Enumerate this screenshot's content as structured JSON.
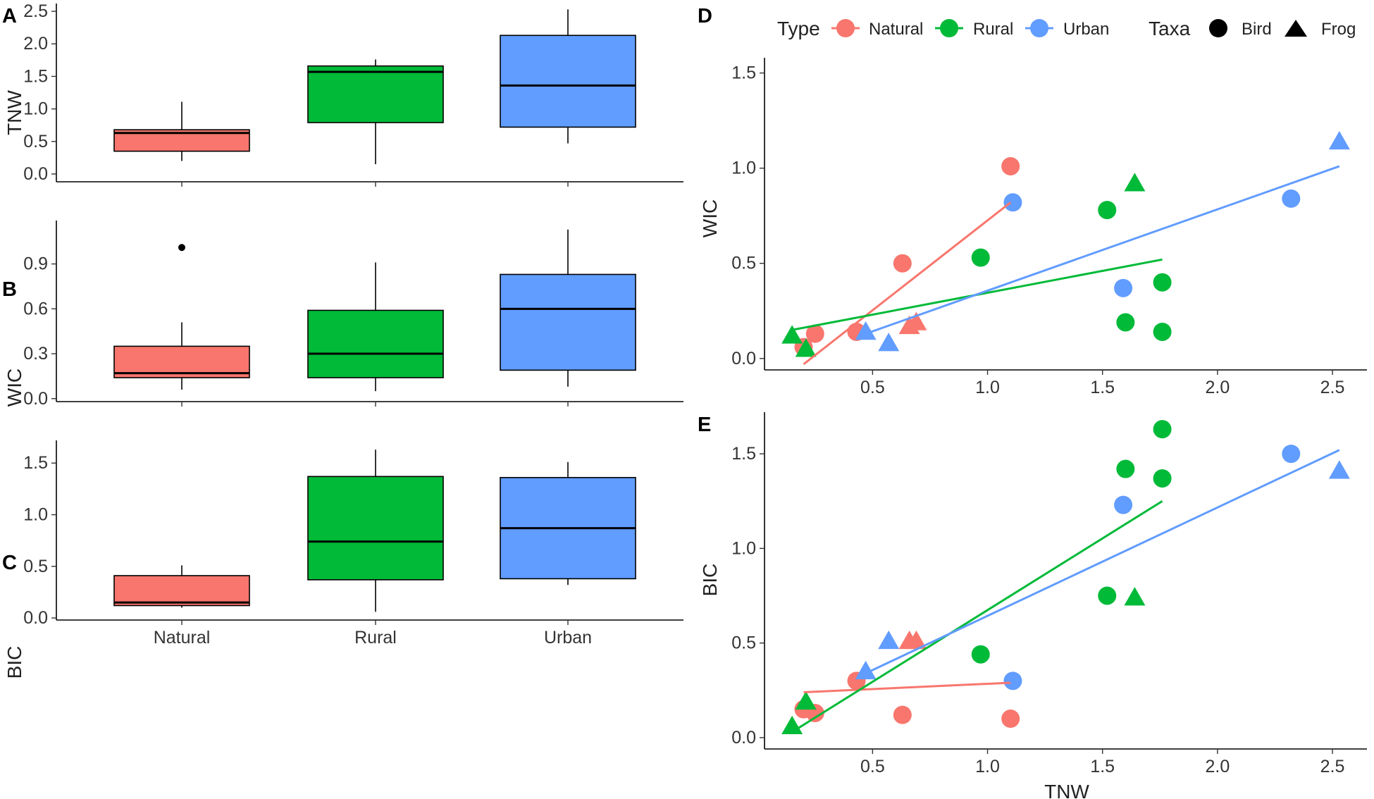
{
  "figure": {
    "panels": [
      "A",
      "B",
      "C",
      "D",
      "E"
    ]
  },
  "legend": {
    "type_title": "Type",
    "type_entries": [
      {
        "label": "Natural",
        "color": "#F8766D"
      },
      {
        "label": "Rural",
        "color": "#00BA38"
      },
      {
        "label": "Urban",
        "color": "#619CFF"
      }
    ],
    "taxa_title": "Taxa",
    "taxa_entries": [
      {
        "label": "Bird",
        "shape": "circle"
      },
      {
        "label": "Frog",
        "shape": "triangle"
      }
    ]
  },
  "chart_data": [
    {
      "panel": "A",
      "type": "box",
      "ylabel": "TNW",
      "categories": [
        "Natural",
        "Rural",
        "Urban"
      ],
      "colors": [
        "#F8766D",
        "#00BA38",
        "#619CFF"
      ],
      "ylim": [
        -0.12,
        2.62
      ],
      "yticks": [
        0.0,
        0.5,
        1.0,
        1.5,
        2.0,
        2.5
      ],
      "ytick_labels": [
        "0.0",
        "0.5",
        "1.0",
        "1.5",
        "2.0",
        "2.5"
      ],
      "boxes": [
        {
          "lower_whisker": 0.2,
          "q1": 0.35,
          "median": 0.63,
          "q3": 0.68,
          "upper_whisker": 1.11,
          "outliers": []
        },
        {
          "lower_whisker": 0.15,
          "q1": 0.79,
          "median": 1.57,
          "q3": 1.66,
          "upper_whisker": 1.76,
          "outliers": []
        },
        {
          "lower_whisker": 0.47,
          "q1": 0.72,
          "median": 1.36,
          "q3": 2.13,
          "upper_whisker": 2.53,
          "outliers": []
        }
      ]
    },
    {
      "panel": "B",
      "type": "box",
      "ylabel": "WIC",
      "categories": [
        "Natural",
        "Rural",
        "Urban"
      ],
      "colors": [
        "#F8766D",
        "#00BA38",
        "#619CFF"
      ],
      "ylim": [
        -0.02,
        1.19
      ],
      "yticks": [
        0.0,
        0.3,
        0.6,
        0.9
      ],
      "ytick_labels": [
        "0.0",
        "0.3",
        "0.6",
        "0.9"
      ],
      "boxes": [
        {
          "lower_whisker": 0.06,
          "q1": 0.14,
          "median": 0.17,
          "q3": 0.35,
          "upper_whisker": 0.51,
          "outliers": [
            1.01
          ]
        },
        {
          "lower_whisker": 0.05,
          "q1": 0.14,
          "median": 0.3,
          "q3": 0.59,
          "upper_whisker": 0.91,
          "outliers": []
        },
        {
          "lower_whisker": 0.08,
          "q1": 0.19,
          "median": 0.6,
          "q3": 0.83,
          "upper_whisker": 1.13,
          "outliers": []
        }
      ]
    },
    {
      "panel": "C",
      "type": "box",
      "ylabel": "BIC",
      "xlabels_shown": true,
      "categories": [
        "Natural",
        "Rural",
        "Urban"
      ],
      "colors": [
        "#F8766D",
        "#00BA38",
        "#619CFF"
      ],
      "ylim": [
        -0.02,
        1.72
      ],
      "yticks": [
        0.0,
        0.5,
        1.0,
        1.5
      ],
      "ytick_labels": [
        "0.0",
        "0.5",
        "1.0",
        "1.5"
      ],
      "boxes": [
        {
          "lower_whisker": 0.1,
          "q1": 0.12,
          "median": 0.15,
          "q3": 0.41,
          "upper_whisker": 0.51,
          "outliers": []
        },
        {
          "lower_whisker": 0.06,
          "q1": 0.37,
          "median": 0.74,
          "q3": 1.37,
          "upper_whisker": 1.63,
          "outliers": []
        },
        {
          "lower_whisker": 0.32,
          "q1": 0.38,
          "median": 0.87,
          "q3": 1.36,
          "upper_whisker": 1.51,
          "outliers": []
        }
      ]
    },
    {
      "panel": "D",
      "type": "scatter",
      "xlabel": "",
      "ylabel": "WIC",
      "xlim": [
        0.03,
        2.65
      ],
      "ylim": [
        -0.06,
        1.58
      ],
      "xticks": [
        0.5,
        1.0,
        1.5,
        2.0,
        2.5
      ],
      "xtick_labels": [
        "0.5",
        "1.0",
        "1.5",
        "2.0",
        "2.5"
      ],
      "yticks": [
        0.0,
        0.5,
        1.0,
        1.5
      ],
      "ytick_labels": [
        "0.0",
        "0.5",
        "1.0",
        "1.5"
      ],
      "points": [
        {
          "x": 0.2,
          "y": 0.06,
          "type": "Natural",
          "taxa": "Bird"
        },
        {
          "x": 0.25,
          "y": 0.13,
          "type": "Natural",
          "taxa": "Bird"
        },
        {
          "x": 0.43,
          "y": 0.14,
          "type": "Natural",
          "taxa": "Bird"
        },
        {
          "x": 0.63,
          "y": 0.5,
          "type": "Natural",
          "taxa": "Bird"
        },
        {
          "x": 1.1,
          "y": 1.01,
          "type": "Natural",
          "taxa": "Bird"
        },
        {
          "x": 0.66,
          "y": 0.17,
          "type": "Natural",
          "taxa": "Frog"
        },
        {
          "x": 0.69,
          "y": 0.19,
          "type": "Natural",
          "taxa": "Frog"
        },
        {
          "x": 0.97,
          "y": 0.53,
          "type": "Rural",
          "taxa": "Bird"
        },
        {
          "x": 1.52,
          "y": 0.78,
          "type": "Rural",
          "taxa": "Bird"
        },
        {
          "x": 1.6,
          "y": 0.19,
          "type": "Rural",
          "taxa": "Bird"
        },
        {
          "x": 1.76,
          "y": 0.4,
          "type": "Rural",
          "taxa": "Bird"
        },
        {
          "x": 1.76,
          "y": 0.14,
          "type": "Rural",
          "taxa": "Bird"
        },
        {
          "x": 0.15,
          "y": 0.12,
          "type": "Rural",
          "taxa": "Frog"
        },
        {
          "x": 0.21,
          "y": 0.05,
          "type": "Rural",
          "taxa": "Frog"
        },
        {
          "x": 1.64,
          "y": 0.92,
          "type": "Rural",
          "taxa": "Frog"
        },
        {
          "x": 1.11,
          "y": 0.82,
          "type": "Urban",
          "taxa": "Bird"
        },
        {
          "x": 1.59,
          "y": 0.37,
          "type": "Urban",
          "taxa": "Bird"
        },
        {
          "x": 2.32,
          "y": 0.84,
          "type": "Urban",
          "taxa": "Bird"
        },
        {
          "x": 0.47,
          "y": 0.14,
          "type": "Urban",
          "taxa": "Frog"
        },
        {
          "x": 0.57,
          "y": 0.08,
          "type": "Urban",
          "taxa": "Frog"
        },
        {
          "x": 2.53,
          "y": 1.14,
          "type": "Urban",
          "taxa": "Frog"
        }
      ],
      "fit_lines": [
        {
          "type": "Natural",
          "x": [
            0.2,
            1.1
          ],
          "y": [
            -0.03,
            0.82
          ]
        },
        {
          "type": "Rural",
          "x": [
            0.15,
            1.76
          ],
          "y": [
            0.15,
            0.52
          ]
        },
        {
          "type": "Urban",
          "x": [
            0.47,
            2.53
          ],
          "y": [
            0.13,
            1.01
          ]
        }
      ]
    },
    {
      "panel": "E",
      "type": "scatter",
      "xlabel": "TNW",
      "ylabel": "BIC",
      "xlim": [
        0.03,
        2.65
      ],
      "ylim": [
        -0.06,
        1.72
      ],
      "xticks": [
        0.5,
        1.0,
        1.5,
        2.0,
        2.5
      ],
      "xtick_labels": [
        "0.5",
        "1.0",
        "1.5",
        "2.0",
        "2.5"
      ],
      "yticks": [
        0.0,
        0.5,
        1.0,
        1.5
      ],
      "ytick_labels": [
        "0.0",
        "0.5",
        "1.0",
        "1.5"
      ],
      "points": [
        {
          "x": 0.2,
          "y": 0.15,
          "type": "Natural",
          "taxa": "Bird"
        },
        {
          "x": 0.25,
          "y": 0.13,
          "type": "Natural",
          "taxa": "Bird"
        },
        {
          "x": 0.43,
          "y": 0.3,
          "type": "Natural",
          "taxa": "Bird"
        },
        {
          "x": 0.63,
          "y": 0.12,
          "type": "Natural",
          "taxa": "Bird"
        },
        {
          "x": 1.1,
          "y": 0.1,
          "type": "Natural",
          "taxa": "Bird"
        },
        {
          "x": 0.66,
          "y": 0.51,
          "type": "Natural",
          "taxa": "Frog"
        },
        {
          "x": 0.69,
          "y": 0.51,
          "type": "Natural",
          "taxa": "Frog"
        },
        {
          "x": 0.97,
          "y": 0.44,
          "type": "Rural",
          "taxa": "Bird"
        },
        {
          "x": 1.52,
          "y": 0.75,
          "type": "Rural",
          "taxa": "Bird"
        },
        {
          "x": 1.6,
          "y": 1.42,
          "type": "Rural",
          "taxa": "Bird"
        },
        {
          "x": 1.76,
          "y": 1.63,
          "type": "Rural",
          "taxa": "Bird"
        },
        {
          "x": 1.76,
          "y": 1.37,
          "type": "Rural",
          "taxa": "Bird"
        },
        {
          "x": 0.15,
          "y": 0.06,
          "type": "Rural",
          "taxa": "Frog"
        },
        {
          "x": 0.21,
          "y": 0.19,
          "type": "Rural",
          "taxa": "Frog"
        },
        {
          "x": 1.64,
          "y": 0.74,
          "type": "Rural",
          "taxa": "Frog"
        },
        {
          "x": 1.11,
          "y": 0.3,
          "type": "Urban",
          "taxa": "Bird"
        },
        {
          "x": 1.59,
          "y": 1.23,
          "type": "Urban",
          "taxa": "Bird"
        },
        {
          "x": 2.32,
          "y": 1.5,
          "type": "Urban",
          "taxa": "Bird"
        },
        {
          "x": 0.47,
          "y": 0.35,
          "type": "Urban",
          "taxa": "Frog"
        },
        {
          "x": 0.57,
          "y": 0.51,
          "type": "Urban",
          "taxa": "Frog"
        },
        {
          "x": 2.53,
          "y": 1.41,
          "type": "Urban",
          "taxa": "Frog"
        }
      ],
      "fit_lines": [
        {
          "type": "Natural",
          "x": [
            0.2,
            1.1
          ],
          "y": [
            0.24,
            0.29
          ]
        },
        {
          "type": "Rural",
          "x": [
            0.15,
            1.76
          ],
          "y": [
            0.03,
            1.25
          ]
        },
        {
          "type": "Urban",
          "x": [
            0.47,
            2.53
          ],
          "y": [
            0.34,
            1.52
          ]
        }
      ]
    }
  ]
}
